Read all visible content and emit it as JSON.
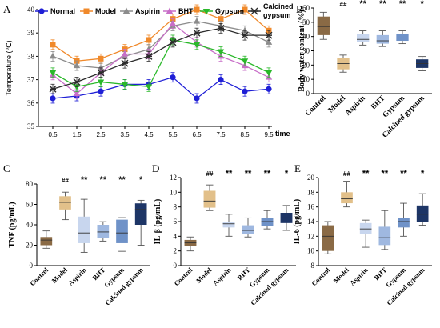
{
  "colors": {
    "Normal": "#1f1fd6",
    "Model": "#f0892a",
    "Aspirin": "#8c8c8c",
    "BHT": "#c86fc8",
    "Gypsum": "#2ab82a",
    "Calcined gypsum": "#2b2b2b",
    "box": [
      "#8a6a45",
      "#e2c08a",
      "#c8d6ee",
      "#9fb8e0",
      "#6f92c8",
      "#1d3566"
    ]
  },
  "chart_data": [
    {
      "panel": "A",
      "type": "line",
      "ylabel": "Temperature (℃)",
      "xlabel": "time",
      "ylim": [
        35,
        40
      ],
      "yticks": [
        35,
        36,
        37,
        38,
        39,
        40
      ],
      "x": [
        "0.5",
        "1.5",
        "2.5",
        "3.5",
        "4.5",
        "5.5",
        "6.5",
        "7.5",
        "8.5",
        "9.5"
      ],
      "legend": [
        "Normal",
        "Model",
        "Aspirin",
        "BHT",
        "Gypsum",
        "Calcined gypsum"
      ],
      "series": [
        {
          "name": "Normal",
          "values": [
            36.2,
            36.3,
            36.5,
            36.8,
            36.8,
            37.1,
            36.2,
            37.0,
            36.5,
            36.6
          ]
        },
        {
          "name": "Model",
          "values": [
            38.5,
            37.8,
            37.9,
            38.3,
            38.7,
            39.6,
            40.0,
            39.6,
            40.0,
            39.1
          ]
        },
        {
          "name": "Aspirin",
          "values": [
            38.0,
            37.6,
            37.5,
            38.0,
            38.3,
            39.3,
            39.5,
            39.3,
            39.1,
            38.6
          ]
        },
        {
          "name": "BHT",
          "values": [
            37.2,
            36.4,
            37.3,
            38.1,
            38.1,
            39.4,
            38.6,
            38.0,
            37.6,
            37.1
          ]
        },
        {
          "name": "Gypsum",
          "values": [
            37.3,
            36.7,
            36.9,
            36.8,
            36.7,
            38.7,
            38.5,
            38.2,
            37.8,
            37.3
          ]
        },
        {
          "name": "Calcined gypsum",
          "values": [
            36.6,
            36.9,
            37.3,
            37.7,
            38.0,
            38.6,
            39.0,
            39.2,
            38.9,
            38.9
          ]
        }
      ]
    },
    {
      "panel": "B",
      "type": "box",
      "ylabel": "Body water content (%)",
      "ylim": [
        0,
        60
      ],
      "yticks": [
        0,
        10,
        20,
        30,
        40,
        50,
        60
      ],
      "categories": [
        "Control",
        "Model",
        "Aspirin",
        "BHT",
        "Gypsum",
        "Calcined gypsum"
      ],
      "boxes": [
        {
          "min": 38,
          "q1": 41,
          "median": 47,
          "q3": 54,
          "max": 57
        },
        {
          "min": 15,
          "q1": 17,
          "median": 21,
          "q3": 25,
          "max": 27
        },
        {
          "min": 34,
          "q1": 36,
          "median": 38,
          "q3": 42,
          "max": 44
        },
        {
          "min": 33,
          "q1": 35,
          "median": 37,
          "q3": 41,
          "max": 44
        },
        {
          "min": 35,
          "q1": 37,
          "median": 39,
          "q3": 42,
          "max": 44
        },
        {
          "min": 16,
          "q1": 18,
          "median": 21,
          "q3": 24,
          "max": 26
        }
      ],
      "annotations": [
        "",
        "##",
        "**",
        "**",
        "**",
        "*"
      ]
    },
    {
      "panel": "C",
      "type": "box",
      "ylabel": "TNF (pg/mL)",
      "ylim": [
        0,
        80
      ],
      "yticks": [
        0,
        20,
        40,
        60,
        80
      ],
      "categories": [
        "Control",
        "Model",
        "Aspirin",
        "BHT",
        "Gypsum",
        "Calcined gypsum"
      ],
      "boxes": [
        {
          "min": 17,
          "q1": 20,
          "median": 25,
          "q3": 28,
          "max": 34
        },
        {
          "min": 45,
          "q1": 55,
          "median": 62,
          "q3": 68,
          "max": 72
        },
        {
          "min": 13,
          "q1": 22,
          "median": 32,
          "q3": 48,
          "max": 65
        },
        {
          "min": 24,
          "q1": 27,
          "median": 33,
          "q3": 40,
          "max": 43
        },
        {
          "min": 14,
          "q1": 22,
          "median": 32,
          "q3": 45,
          "max": 47
        },
        {
          "min": 20,
          "q1": 40,
          "median": 55,
          "q3": 61,
          "max": 64
        }
      ],
      "annotations": [
        "",
        "##",
        "**",
        "**",
        "**",
        "*"
      ]
    },
    {
      "panel": "D",
      "type": "box",
      "ylabel": "IL-β (pg/mL)",
      "ylim": [
        0,
        12
      ],
      "yticks": [
        0,
        2,
        4,
        6,
        8,
        10,
        12
      ],
      "categories": [
        "Control",
        "Model",
        "Aspirin",
        "BHT",
        "Gypsum",
        "Calcined gypsum"
      ],
      "boxes": [
        {
          "min": 2.0,
          "q1": 2.7,
          "median": 3.1,
          "q3": 3.5,
          "max": 3.9
        },
        {
          "min": 7.5,
          "q1": 7.9,
          "median": 8.8,
          "q3": 10.2,
          "max": 11.0
        },
        {
          "min": 4.0,
          "q1": 5.2,
          "median": 5.7,
          "q3": 6.0,
          "max": 7.0
        },
        {
          "min": 3.9,
          "q1": 4.3,
          "median": 4.8,
          "q3": 5.5,
          "max": 6.5
        },
        {
          "min": 5.0,
          "q1": 5.4,
          "median": 6.0,
          "q3": 6.5,
          "max": 7.5
        },
        {
          "min": 4.8,
          "q1": 5.8,
          "median": 6.5,
          "q3": 7.2,
          "max": 8.2
        }
      ],
      "annotations": [
        "",
        "##",
        "**",
        "**",
        "**",
        "*"
      ]
    },
    {
      "panel": "E",
      "type": "box",
      "ylabel": "IL-6 (pg/mL)",
      "ylim": [
        8,
        20
      ],
      "yticks": [
        8,
        10,
        12,
        14,
        16,
        18,
        20
      ],
      "categories": [
        "Control",
        "Model",
        "Aspirin",
        "BHT",
        "Gypsum",
        "Calcined gypsum"
      ],
      "boxes": [
        {
          "min": 9.6,
          "q1": 10.0,
          "median": 12.0,
          "q3": 13.5,
          "max": 14.0
        },
        {
          "min": 16.0,
          "q1": 16.5,
          "median": 17.1,
          "q3": 18.0,
          "max": 19.5
        },
        {
          "min": 10.5,
          "q1": 12.3,
          "median": 13.0,
          "q3": 13.8,
          "max": 14.2
        },
        {
          "min": 10.2,
          "q1": 10.8,
          "median": 11.8,
          "q3": 13.3,
          "max": 15.5
        },
        {
          "min": 12.0,
          "q1": 13.2,
          "median": 14.0,
          "q3": 14.5,
          "max": 16.5
        },
        {
          "min": 13.5,
          "q1": 14.0,
          "median": 15.0,
          "q3": 16.2,
          "max": 17.8
        }
      ],
      "annotations": [
        "",
        "##",
        "**",
        "**",
        "**",
        "*"
      ]
    }
  ]
}
